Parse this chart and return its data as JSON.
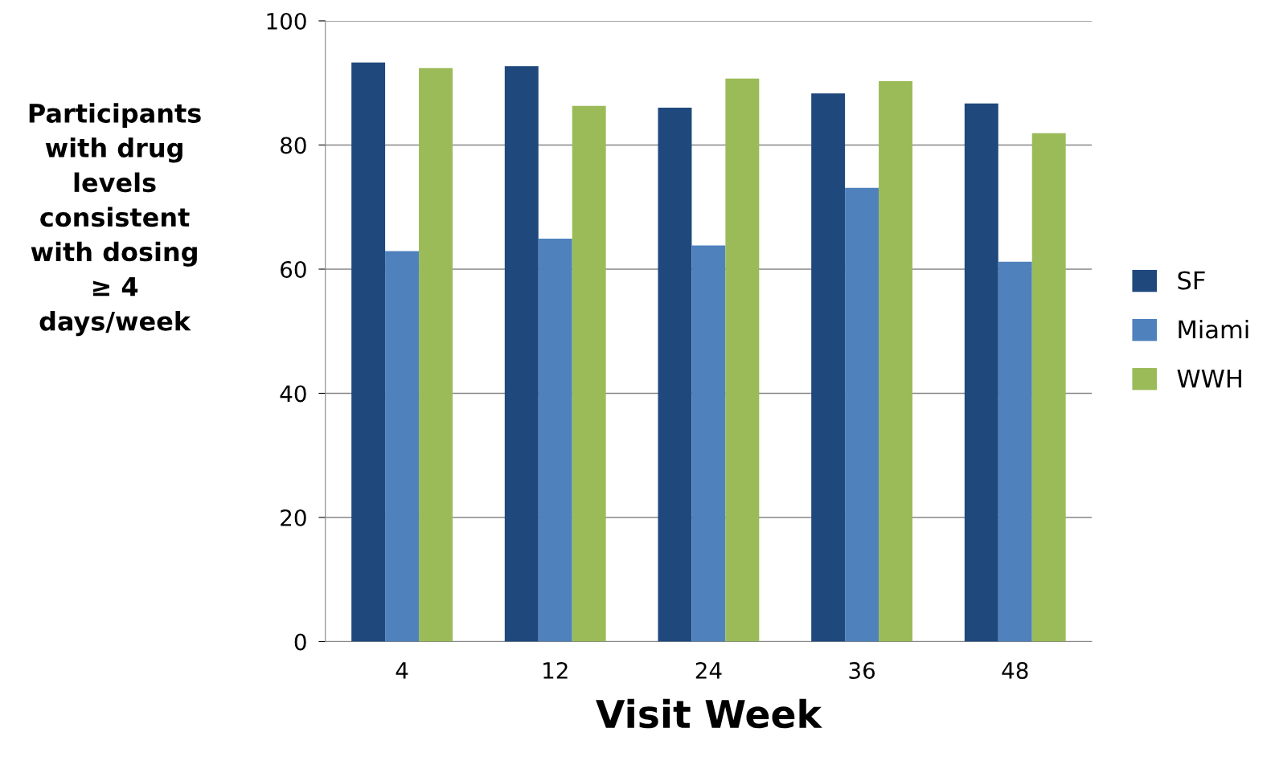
{
  "chart_data": {
    "type": "bar",
    "xlabel": "Visit Week",
    "ylabel": "Participants\nwith drug\nlevels\nconsistent\nwith dosing\n≥ 4\ndays/week",
    "categories": [
      "4",
      "12",
      "24",
      "36",
      "48"
    ],
    "series": [
      {
        "name": "SF",
        "color": "#1f497d",
        "values": [
          93.3,
          92.7,
          86.0,
          88.3,
          86.7
        ]
      },
      {
        "name": "Miami",
        "color": "#4f81bd",
        "values": [
          62.9,
          64.9,
          63.8,
          73.1,
          61.2
        ]
      },
      {
        "name": "WWH",
        "color": "#9bbb59",
        "values": [
          92.4,
          86.3,
          90.7,
          90.3,
          81.9
        ]
      }
    ],
    "ylim": [
      0,
      100
    ],
    "yticks": [
      0,
      20,
      40,
      60,
      80,
      100
    ],
    "grid": "y",
    "legend": "right"
  }
}
